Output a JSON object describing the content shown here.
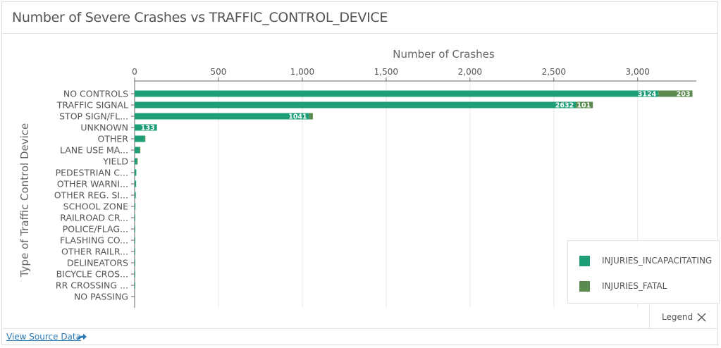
{
  "header": {
    "title": "Number of Severe Crashes vs TRAFFIC_CONTROL_DEVICE"
  },
  "footer": {
    "source_link": "View Source Data"
  },
  "legend_toggle": {
    "label": "Legend"
  },
  "colors": {
    "incapacitating": "#1e9e77",
    "fatal": "#5a8a4e",
    "grid": "#e8e8e8",
    "axis": "#555555"
  },
  "chart_data": {
    "type": "bar",
    "orientation": "horizontal",
    "stacked": true,
    "xlabel": "Number of Crashes",
    "ylabel": "Type of Traffic Control Device",
    "xlim": [
      0,
      3350
    ],
    "x_ticks": [
      0,
      500,
      1000,
      1500,
      2000,
      2500,
      3000
    ],
    "x_tick_labels": [
      "0",
      "500",
      "1,000",
      "1,500",
      "2,000",
      "2,500",
      "3,000"
    ],
    "grid": true,
    "legend_position": "bottom-right",
    "categories": [
      "NO CONTROLS",
      "TRAFFIC SIGNAL",
      "STOP SIGN/FL...",
      "UNKNOWN",
      "OTHER",
      "LANE USE MA...",
      "YIELD",
      "PEDESTRIAN C...",
      "OTHER WARNI...",
      "OTHER REG. SI...",
      "SCHOOL ZONE",
      "RAILROAD CR...",
      "POLICE/FLAG...",
      "FLASHING CO...",
      "OTHER RAILR...",
      "DELINEATORS",
      "BICYCLE CROS...",
      "RR CROSSING ...",
      "NO PASSING"
    ],
    "series": [
      {
        "name": "INJURIES_INCAPACITATING",
        "color": "#1e9e77",
        "values": [
          3124,
          2632,
          1041,
          133,
          60,
          30,
          14,
          10,
          9,
          7,
          5,
          3,
          2,
          2,
          1,
          1,
          1,
          1,
          0
        ],
        "value_labels": [
          "3124",
          "2632",
          "1041",
          "133",
          "",
          "",
          "",
          "",
          "",
          "",
          "",
          "",
          "",
          "",
          "",
          "",
          "",
          "",
          ""
        ]
      },
      {
        "name": "INJURIES_FATAL",
        "color": "#5a8a4e",
        "values": [
          203,
          101,
          22,
          0,
          2,
          2,
          1,
          0,
          0,
          0,
          0,
          0,
          0,
          0,
          0,
          0,
          0,
          0,
          0
        ],
        "value_labels": [
          "203",
          "101",
          "",
          "",
          "",
          "",
          "",
          "",
          "",
          "",
          "",
          "",
          "",
          "",
          "",
          "",
          "",
          "",
          ""
        ]
      }
    ]
  }
}
